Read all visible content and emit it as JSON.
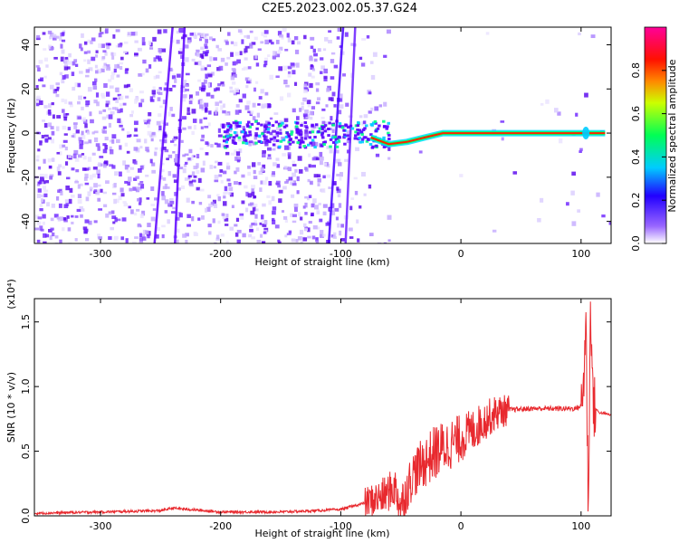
{
  "title": "C2E5.2023.002.05.37.G24",
  "colors": {
    "snr_line": "#e8292e",
    "axis": "#000000",
    "colorbar_stops": [
      "#f0f0ff",
      "#5500cc",
      "#0000ff",
      "#00ccff",
      "#00ff66",
      "#ffff00",
      "#ff2200",
      "#ff0066"
    ]
  },
  "chart_data": [
    {
      "type": "heatmap",
      "title": "C2E5.2023.002.05.37.G24",
      "xlabel": "Height of straight line (km)",
      "ylabel": "Frequency (Hz)",
      "xlim": [
        -355,
        125
      ],
      "ylim": [
        -50,
        48
      ],
      "x_ticks": [
        -300,
        -200,
        -100,
        0,
        100
      ],
      "y_ticks": [
        -40,
        -20,
        0,
        20,
        40
      ],
      "colorbar": {
        "label": "Normalized spectral amplitude",
        "range": [
          0,
          1
        ],
        "ticks": [
          0.0,
          0.2,
          0.4,
          0.6,
          0.8
        ]
      },
      "features": [
        {
          "name": "",
          "x": [
            -75,
            -60,
            -45,
            -30,
            -15,
            0,
            50,
            100,
            120
          ],
          "y": [
            -2,
            -5,
            -4,
            -2,
            0,
            0,
            0,
            0,
            0
          ]
        }
      ]
    },
    {
      "type": "line",
      "xlabel": "Height of straight line (km)",
      "ylabel": "SNR (10 * v/v)",
      "y_multiplier": "(x10⁴)",
      "xlim": [
        -355,
        125
      ],
      "ylim": [
        0,
        1.68
      ],
      "x_ticks": [
        -300,
        -200,
        -100,
        0,
        100
      ],
      "y_ticks": [
        0.0,
        0.5,
        1.0,
        1.5
      ],
      "series": [
        {
          "name": "",
          "x": [
            -355,
            -300,
            -250,
            -240,
            -200,
            -150,
            -120,
            -100,
            -80,
            -65,
            -55,
            -50,
            -45,
            -40,
            -30,
            -20,
            -10,
            0,
            10,
            20,
            30,
            40,
            60,
            80,
            95,
            100,
            102,
            104,
            106,
            108,
            110,
            115,
            125
          ],
          "y": [
            0.02,
            0.03,
            0.04,
            0.06,
            0.03,
            0.03,
            0.04,
            0.05,
            0.1,
            0.15,
            0.22,
            0.08,
            0.2,
            0.32,
            0.42,
            0.5,
            0.55,
            0.6,
            0.66,
            0.74,
            0.8,
            0.82,
            0.83,
            0.83,
            0.83,
            0.85,
            1.0,
            1.55,
            0.05,
            1.68,
            0.85,
            0.8,
            0.78
          ]
        }
      ]
    }
  ]
}
